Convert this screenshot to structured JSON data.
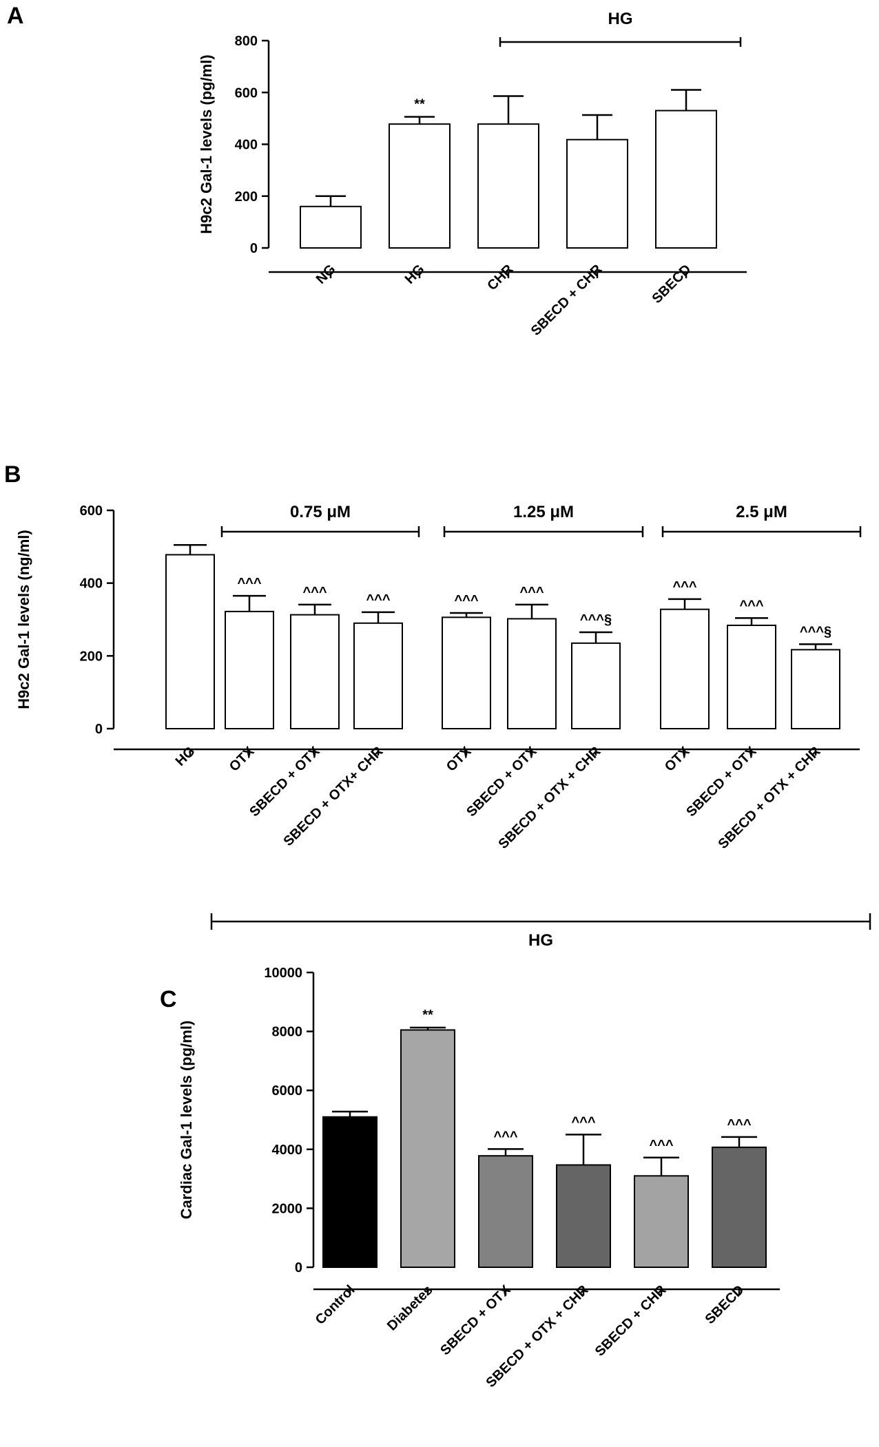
{
  "chart_data": [
    {
      "panel": "A",
      "type": "bar",
      "ylabel": "H9c2 Gal-1 levels (pg/ml)",
      "ylim": [
        0,
        800
      ],
      "yticks": [
        0,
        200,
        400,
        600,
        800
      ],
      "categories": [
        "NG",
        "HG",
        "CHR",
        "SBECD + CHR",
        "SBECD"
      ],
      "values": [
        160,
        478,
        478,
        418,
        530
      ],
      "errors": [
        40,
        28,
        108,
        95,
        80
      ],
      "annotations": [
        "",
        "**",
        "",
        "",
        ""
      ],
      "fill_colors": [
        "#ffffff",
        "#ffffff",
        "#ffffff",
        "#ffffff",
        "#ffffff"
      ],
      "brackets": [
        {
          "label": "HG",
          "from": 2,
          "to": 4
        }
      ]
    },
    {
      "panel": "B",
      "type": "bar",
      "ylabel": "H9c2 Gal-1 levels (ng/ml)",
      "ylim": [
        0,
        600
      ],
      "yticks": [
        0,
        200,
        400,
        600
      ],
      "categories": [
        "HG",
        "OTX",
        "SBECD + OTX",
        "SBECD + OTX+ CHR",
        "OTX",
        "SBECD + OTX",
        "SBECD + OTX + CHR",
        "OTX",
        "SBECD + OTX",
        "SBECD + OTX + CHR"
      ],
      "values": [
        478,
        322,
        313,
        290,
        306,
        302,
        235,
        328,
        284,
        217
      ],
      "errors": [
        27,
        43,
        28,
        30,
        12,
        39,
        30,
        28,
        20,
        15
      ],
      "annotations": [
        "",
        "^^^",
        "^^^",
        "^^^",
        "^^^",
        "^^^",
        "^^^§",
        "^^^",
        "^^^",
        "^^^§"
      ],
      "fill_colors": [
        "#ffffff",
        "#ffffff",
        "#ffffff",
        "#ffffff",
        "#ffffff",
        "#ffffff",
        "#ffffff",
        "#ffffff",
        "#ffffff",
        "#ffffff"
      ],
      "brackets": [
        {
          "label": "0.75 μM",
          "from": 1,
          "to": 3
        },
        {
          "label": "1.25 μM",
          "from": 4,
          "to": 6
        },
        {
          "label": "2.5 μM",
          "from": 7,
          "to": 9
        }
      ],
      "bottom_bracket": {
        "label": "HG",
        "from": 1,
        "to": 9
      }
    },
    {
      "panel": "C",
      "type": "bar",
      "ylabel": "Cardiac Gal-1 levels (pg/ml)",
      "ylim": [
        0,
        10000
      ],
      "yticks": [
        0,
        2000,
        4000,
        6000,
        8000,
        10000
      ],
      "categories": [
        "Control",
        "Diabetes",
        "SBECD + OTX",
        "SBECD + OTX + CHR",
        "SBECD + CHR",
        "SBECD"
      ],
      "values": [
        5100,
        8050,
        3780,
        3470,
        3100,
        4070
      ],
      "errors": [
        180,
        80,
        230,
        1030,
        620,
        350
      ],
      "annotations": [
        "",
        "**",
        "^^^",
        "^^^",
        "^^^",
        "^^^"
      ],
      "fill_colors": [
        "#000000",
        "#a6a6a6",
        "#828282",
        "#656565",
        "#a3a3a3",
        "#656565"
      ],
      "brackets": []
    }
  ]
}
